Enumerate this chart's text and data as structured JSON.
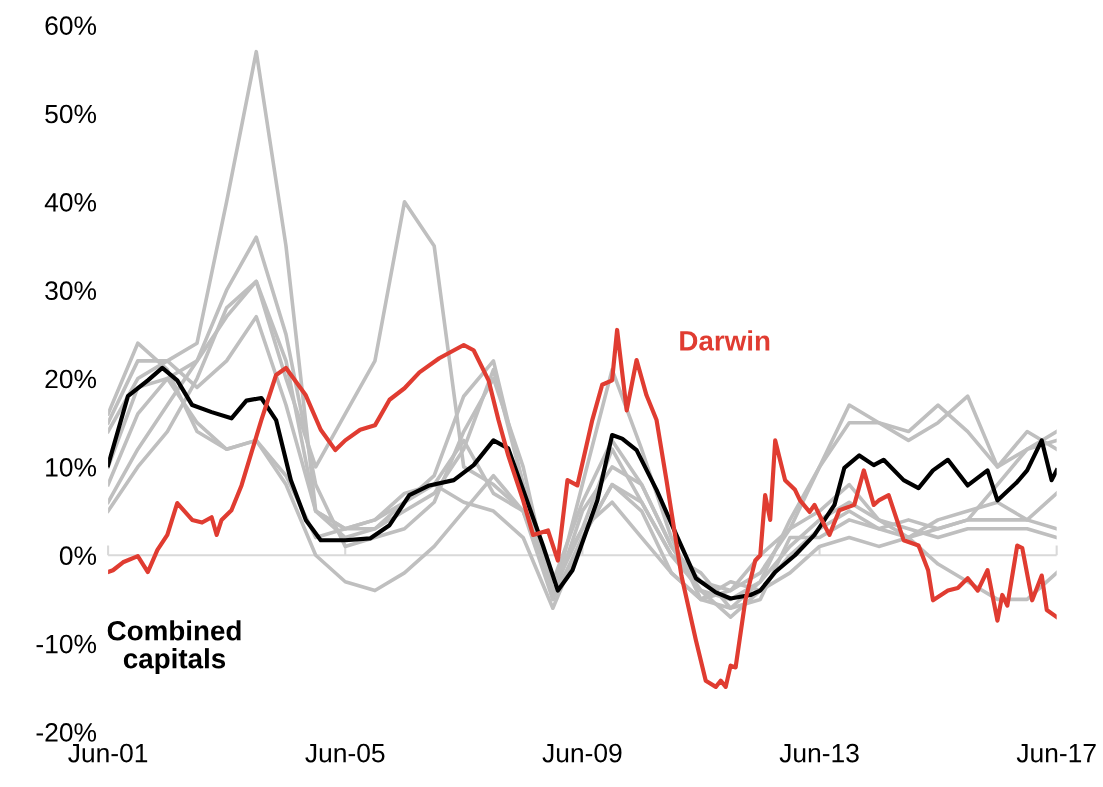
{
  "chart_data": {
    "type": "line",
    "xlim": [
      "2001-06",
      "2017-06"
    ],
    "xticks": [
      {
        "value": "2001-06",
        "label": "Jun-01"
      },
      {
        "value": "2005-06",
        "label": "Jun-05"
      },
      {
        "value": "2009-06",
        "label": "Jun-09"
      },
      {
        "value": "2013-06",
        "label": "Jun-13"
      },
      {
        "value": "2017-06",
        "label": "Jun-17"
      }
    ],
    "ylim": [
      -20,
      60
    ],
    "yticks": [
      {
        "value": -20,
        "label": "-20%"
      },
      {
        "value": -10,
        "label": "-10%"
      },
      {
        "value": 0,
        "label": "0%"
      },
      {
        "value": 10,
        "label": "10%"
      },
      {
        "value": 20,
        "label": "20%"
      },
      {
        "value": 30,
        "label": "30%"
      },
      {
        "value": 40,
        "label": "40%"
      },
      {
        "value": 50,
        "label": "50%"
      },
      {
        "value": 60,
        "label": "60%"
      }
    ],
    "ref_lines": [
      {
        "axis": "y",
        "value": 0,
        "color": "#d9d9d9"
      }
    ],
    "legend": false,
    "marker": "none",
    "line_style": "solid",
    "x": [
      "2001-06",
      "2001-12",
      "2002-06",
      "2002-12",
      "2003-06",
      "2003-12",
      "2004-06",
      "2004-12",
      "2005-06",
      "2005-12",
      "2006-06",
      "2006-12",
      "2007-06",
      "2007-12",
      "2008-06",
      "2008-12",
      "2009-06",
      "2009-12",
      "2010-06",
      "2010-12",
      "2011-06",
      "2011-12",
      "2012-06",
      "2012-12",
      "2013-06",
      "2013-12",
      "2014-06",
      "2014-12",
      "2015-06",
      "2015-12",
      "2016-06",
      "2016-12",
      "2017-06"
    ],
    "series": [
      {
        "color": "#bfbfbf",
        "values": [
          15,
          22,
          22,
          24,
          40,
          57,
          35,
          5,
          3,
          3,
          5,
          7,
          12,
          21,
          8,
          -4,
          3,
          12,
          6,
          0,
          -4,
          -5,
          -3,
          1,
          4,
          6,
          4,
          3,
          2,
          3,
          3,
          3,
          2
        ]
      },
      {
        "color": "#bfbfbf",
        "values": [
          6,
          12,
          17,
          22,
          27,
          31,
          20,
          10,
          16,
          22,
          40,
          35,
          10,
          8,
          5,
          -5,
          2,
          8,
          5,
          -2,
          -5,
          -4,
          0,
          3,
          5,
          8,
          4,
          2,
          -1,
          -3,
          -5,
          -5,
          -2
        ]
      },
      {
        "color": "#bfbfbf",
        "values": [
          8,
          16,
          20,
          22,
          30,
          36,
          25,
          8,
          1,
          2,
          3,
          6,
          14,
          20,
          10,
          -5,
          5,
          10,
          8,
          1,
          -4,
          -7,
          -4,
          0,
          3,
          5,
          3,
          4,
          3,
          4,
          4,
          4,
          3
        ]
      },
      {
        "color": "#bfbfbf",
        "values": [
          16,
          24,
          21,
          14,
          12,
          13,
          8,
          0,
          -3,
          -4,
          -2,
          1,
          5,
          9,
          5,
          -3,
          6,
          13,
          8,
          1,
          -3,
          -4,
          -2,
          3,
          10,
          15,
          15,
          14,
          17,
          14,
          10,
          14,
          12
        ]
      },
      {
        "color": "#bfbfbf",
        "values": [
          14,
          20,
          22,
          19,
          22,
          27,
          17,
          5,
          2,
          3,
          6,
          9,
          18,
          22,
          8,
          -5,
          8,
          21,
          12,
          2,
          -5,
          -6,
          -3,
          4,
          10,
          17,
          15,
          13,
          15,
          18,
          10,
          12,
          14
        ]
      },
      {
        "color": "#bfbfbf",
        "values": [
          5,
          10,
          14,
          20,
          28,
          31,
          22,
          5,
          3,
          4,
          6,
          8,
          13,
          7,
          5,
          -3,
          3,
          6,
          2,
          -2,
          -5,
          -3,
          -4,
          -2,
          1,
          2,
          1,
          2,
          3,
          4,
          8,
          12,
          13
        ]
      },
      {
        "color": "#bfbfbf",
        "values": [
          10,
          19,
          20,
          15,
          12,
          13,
          9,
          2,
          3,
          4,
          7,
          8,
          6,
          5,
          2,
          -6,
          2,
          8,
          6,
          0,
          -2,
          -6,
          -5,
          2,
          2,
          4,
          3,
          2,
          4,
          5,
          6,
          4,
          7
        ]
      },
      {
        "name": "Combined capitals",
        "color": "#000000",
        "x": [
          "2001-06",
          "2001-10",
          "2002-02",
          "2002-05",
          "2002-08",
          "2002-11",
          "2003-03",
          "2003-07",
          "2003-10",
          "2004-01",
          "2004-04",
          "2004-07",
          "2004-10",
          "2005-01",
          "2005-06",
          "2005-11",
          "2006-03",
          "2006-07",
          "2006-11",
          "2007-04",
          "2007-08",
          "2007-12",
          "2008-03",
          "2008-06",
          "2008-10",
          "2009-01",
          "2009-04",
          "2009-09",
          "2009-12",
          "2010-02",
          "2010-05",
          "2010-09",
          "2011-01",
          "2011-05",
          "2011-09",
          "2011-12",
          "2012-04",
          "2012-06",
          "2012-09",
          "2013-01",
          "2013-05",
          "2013-09",
          "2013-11",
          "2014-02",
          "2014-05",
          "2014-07",
          "2014-11",
          "2015-02",
          "2015-05",
          "2015-08",
          "2015-12",
          "2016-04",
          "2016-06",
          "2016-10",
          "2016-12",
          "2017-03",
          "2017-05",
          "2017-06"
        ],
        "values": [
          10.2,
          18,
          19.8,
          21.2,
          19.8,
          17,
          16.2,
          15.5,
          17.5,
          17.8,
          15.3,
          8.5,
          4,
          1.7,
          1.7,
          1.9,
          3.4,
          6.8,
          7.9,
          8.5,
          10.2,
          13,
          12.1,
          7.4,
          1.1,
          -4,
          -1.7,
          6.2,
          13.6,
          13.2,
          11.9,
          7.4,
          2.3,
          -2.6,
          -4.2,
          -4.9,
          -4.5,
          -4,
          -1.9,
          0,
          2.3,
          5.7,
          9.9,
          11.3,
          10.2,
          10.8,
          8.5,
          7.6,
          9.6,
          10.8,
          7.9,
          9.6,
          6.2,
          8.3,
          9.6,
          13,
          8.5,
          9.6
        ]
      },
      {
        "name": "Darwin",
        "color": "#e03c31",
        "x": [
          "2001-06",
          "2001-07",
          "2001-09",
          "2001-12",
          "2002-02",
          "2002-04",
          "2002-06",
          "2002-08",
          "2002-11",
          "2003-01",
          "2003-03",
          "2003-04",
          "2003-05",
          "2003-07",
          "2003-09",
          "2004-01",
          "2004-04",
          "2004-06",
          "2004-10",
          "2005-01",
          "2005-04",
          "2005-06",
          "2005-09",
          "2005-12",
          "2006-03",
          "2006-06",
          "2006-09",
          "2007-01",
          "2007-06",
          "2007-08",
          "2007-11",
          "2008-01",
          "2008-03",
          "2008-06",
          "2008-08",
          "2008-11",
          "2009-01",
          "2009-03",
          "2009-05",
          "2009-08",
          "2009-10",
          "2009-12",
          "2010-01",
          "2010-03",
          "2010-05",
          "2010-07",
          "2010-09",
          "2010-11",
          "2011-02",
          "2011-05",
          "2011-07",
          "2011-09",
          "2011-10",
          "2011-11",
          "2011-12",
          "2012-01",
          "2012-03",
          "2012-05",
          "2012-06",
          "2012-07",
          "2012-08",
          "2012-09",
          "2012-11",
          "2013-01",
          "2013-02",
          "2013-04",
          "2013-05",
          "2013-07",
          "2013-08",
          "2013-10",
          "2014-01",
          "2014-03",
          "2014-05",
          "2014-06",
          "2014-08",
          "2014-11",
          "2015-02",
          "2015-04",
          "2015-05",
          "2015-08",
          "2015-10",
          "2015-12",
          "2016-02",
          "2016-04",
          "2016-06",
          "2016-07",
          "2016-08",
          "2016-10",
          "2016-11",
          "2017-01",
          "2017-03",
          "2017-04",
          "2017-06"
        ],
        "values": [
          -1.9,
          -1.7,
          -0.8,
          -0.1,
          -1.9,
          0.6,
          2.3,
          5.9,
          4,
          3.7,
          4.3,
          2.3,
          4,
          5.1,
          7.9,
          15.3,
          20.4,
          21.2,
          18.1,
          14.2,
          11.9,
          13,
          14.2,
          14.7,
          17.6,
          18.9,
          20.7,
          22.3,
          23.8,
          23.2,
          19.8,
          15.3,
          11.3,
          6.2,
          2.3,
          2.8,
          -0.6,
          8.5,
          7.9,
          15.3,
          19.3,
          19.8,
          25.5,
          16.4,
          22.1,
          18.1,
          15.3,
          8.5,
          -2.3,
          -9.6,
          -14.2,
          -14.9,
          -14.2,
          -14.9,
          -12.5,
          -12.7,
          -5.1,
          -0.6,
          0,
          6.8,
          4,
          13,
          8.5,
          7.4,
          6.2,
          4.9,
          5.7,
          3.4,
          2.3,
          5.1,
          5.7,
          9.6,
          5.7,
          6.2,
          6.8,
          1.7,
          1.1,
          -1.7,
          -5.1,
          -4,
          -3.7,
          -2.6,
          -4,
          -1.7,
          -7.4,
          -4.5,
          -5.7,
          1.1,
          0.8,
          -5.1,
          -2.3,
          -6.2,
          -7
        ]
      }
    ]
  }
}
